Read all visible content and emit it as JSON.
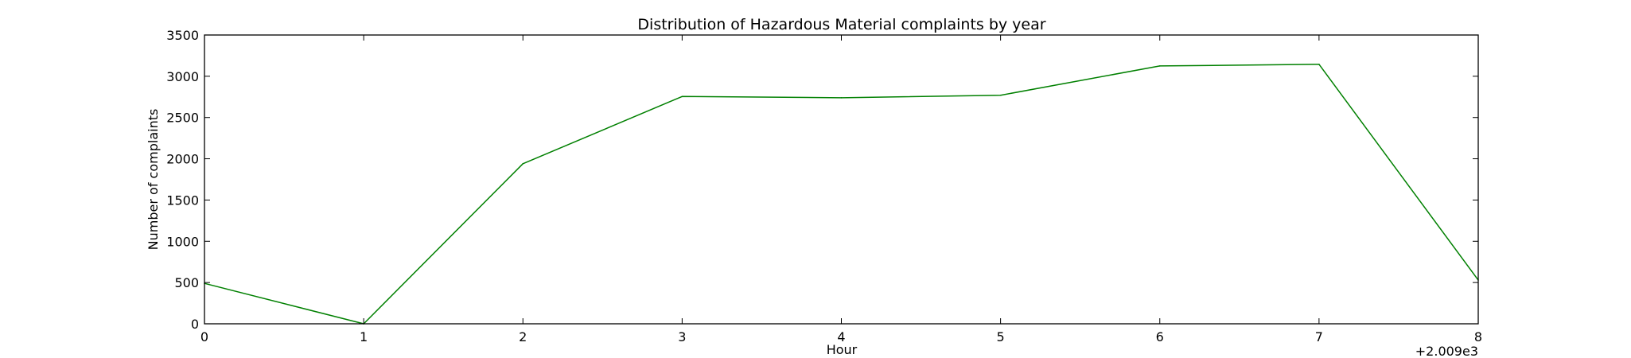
{
  "chart_data": {
    "type": "line",
    "title": "Distribution of  Hazardous Material complaints by year",
    "xlabel": "Hour",
    "ylabel": "Number of complaints",
    "x_offset_label": "+2.009e3",
    "x": [
      0,
      1,
      2,
      3,
      4,
      5,
      6,
      7,
      8
    ],
    "x_ticks": [
      "0",
      "1",
      "2",
      "3",
      "4",
      "5",
      "6",
      "7",
      "8"
    ],
    "y_ticks": [
      "0",
      "500",
      "1000",
      "1500",
      "2000",
      "2500",
      "3000",
      "3500"
    ],
    "xlim": [
      0,
      8
    ],
    "ylim": [
      0,
      3500
    ],
    "grid": false,
    "series": [
      {
        "color": "#008000",
        "values": [
          490,
          0,
          1940,
          2755,
          2740,
          2770,
          3125,
          3145,
          530
        ]
      }
    ]
  }
}
